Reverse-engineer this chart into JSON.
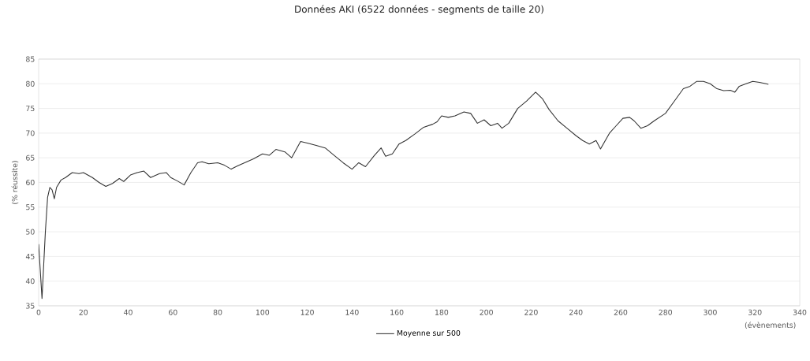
{
  "chart_data": {
    "type": "line",
    "title": "Données AKI (6522 données - segments de taille 20)",
    "xlabel": "(évènements)",
    "ylabel": "(% réussite)",
    "xlim": [
      0,
      340
    ],
    "xticks": [
      0,
      20,
      40,
      60,
      80,
      100,
      120,
      140,
      160,
      180,
      200,
      220,
      240,
      260,
      280,
      300,
      320,
      340
    ],
    "ylim": [
      35,
      85
    ],
    "yticks": [
      35,
      40,
      45,
      50,
      55,
      60,
      65,
      70,
      75,
      80,
      85
    ],
    "grid": "y",
    "legend": "bottom",
    "series": [
      {
        "name": "Moyenne sur 500",
        "color": "#333333",
        "x": [
          0,
          1.5,
          3,
          4,
          5,
          6,
          7,
          8,
          10,
          12,
          15,
          18,
          20,
          24,
          27,
          30,
          33,
          36,
          38,
          41,
          44,
          47,
          50,
          54,
          57,
          59,
          62,
          65,
          68,
          71,
          73,
          76,
          80,
          83,
          86,
          89,
          92,
          96,
          100,
          103,
          106,
          110,
          113,
          117,
          120,
          124,
          128,
          132,
          136,
          140,
          143,
          146,
          150,
          153,
          155,
          158,
          161,
          164,
          168,
          172,
          176,
          178,
          180,
          183,
          186,
          190,
          193,
          196,
          199,
          202,
          205,
          207,
          210,
          214,
          218,
          222,
          225,
          228,
          232,
          236,
          240,
          243,
          246,
          249,
          251,
          255,
          258,
          261,
          264,
          266,
          269,
          272,
          275,
          280,
          284,
          288,
          291,
          294,
          297,
          300,
          303,
          306,
          309,
          311,
          313,
          316,
          319,
          322,
          325,
          326
        ],
        "values": [
          47.5,
          36.5,
          50,
          57,
          59,
          58.5,
          56.7,
          59,
          60.5,
          61,
          62,
          61.8,
          62,
          61,
          60,
          59.2,
          59.8,
          60.8,
          60.2,
          61.5,
          62,
          62.3,
          61,
          61.8,
          62,
          61,
          60.3,
          59.5,
          62,
          64,
          64.2,
          63.8,
          64,
          63.5,
          62.7,
          63.4,
          64,
          64.8,
          65.8,
          65.5,
          66.7,
          66.2,
          65,
          68.3,
          68,
          67.5,
          67,
          65.5,
          64,
          62.7,
          64,
          63.2,
          65.5,
          67,
          65.3,
          65.8,
          67.8,
          68.5,
          69.8,
          71.2,
          71.8,
          72.3,
          73.5,
          73.2,
          73.5,
          74.3,
          74,
          72,
          72.7,
          71.5,
          72,
          71,
          72,
          75,
          76.5,
          78.3,
          77,
          74.8,
          72.5,
          71,
          69.5,
          68.5,
          67.8,
          68.5,
          66.8,
          70,
          71.5,
          73,
          73.2,
          72.5,
          71,
          71.5,
          72.5,
          74,
          76.5,
          79,
          79.5,
          80.5,
          80.5,
          80,
          79,
          78.6,
          78.7,
          78.3,
          79.5,
          80,
          80.5,
          80.3,
          80,
          79.9
        ]
      }
    ]
  }
}
